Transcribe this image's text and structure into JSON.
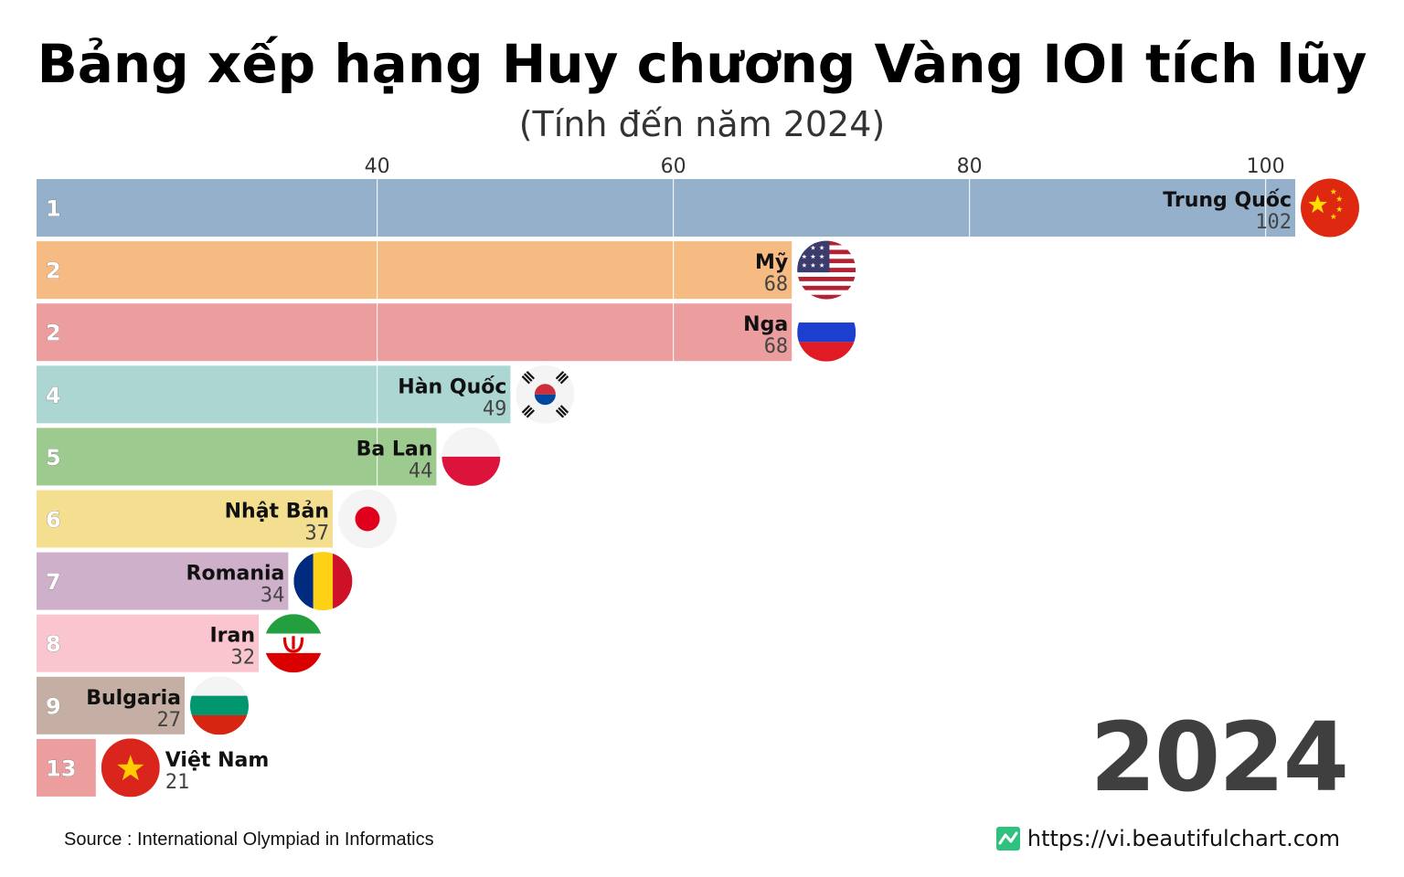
{
  "header": {
    "title": "Bảng xếp hạng Huy chương Vàng IOI tích lũy",
    "subtitle": "(Tính đến năm 2024)"
  },
  "chart_data": {
    "type": "bar",
    "orientation": "horizontal",
    "title": "Bảng xếp hạng Huy chương Vàng IOI tích lũy",
    "subtitle": "(Tính đến năm 2024)",
    "x_ticks": [
      40,
      60,
      80,
      100
    ],
    "grid": true,
    "bars": [
      {
        "rank": "1",
        "name": "Trung Quốc",
        "value": 102,
        "color": "#95b0cb",
        "flag": "china-flag-icon"
      },
      {
        "rank": "2",
        "name": "Mỹ",
        "value": 68,
        "color": "#f5bb82",
        "flag": "usa-flag-icon"
      },
      {
        "rank": "2",
        "name": "Nga",
        "value": 68,
        "color": "#ec9d9e",
        "flag": "russia-flag-icon"
      },
      {
        "rank": "4",
        "name": "Hàn Quốc",
        "value": 49,
        "color": "#acd6d1",
        "flag": "south-korea-flag-icon"
      },
      {
        "rank": "5",
        "name": "Ba Lan",
        "value": 44,
        "color": "#9dca8e",
        "flag": "poland-flag-icon"
      },
      {
        "rank": "6",
        "name": "Nhật Bản",
        "value": 37,
        "color": "#f4df91",
        "flag": "japan-flag-icon"
      },
      {
        "rank": "7",
        "name": "Romania",
        "value": 34,
        "color": "#ceb0cb",
        "flag": "romania-flag-icon"
      },
      {
        "rank": "8",
        "name": "Iran",
        "value": 32,
        "color": "#fac5ce",
        "flag": "iran-flag-icon"
      },
      {
        "rank": "9",
        "name": "Bulgaria",
        "value": 27,
        "color": "#c5aea3",
        "flag": "bulgaria-flag-icon"
      },
      {
        "rank": "13",
        "name": "Việt Nam",
        "value": 21,
        "color": "#ec9d9e",
        "flag": "vietnam-flag-icon"
      }
    ]
  },
  "year": "2024",
  "footer": {
    "source": "Source : International Olympiad in Informatics",
    "website": "https://vi.beautifulchart.com",
    "logo_icon": "chart-logo-icon"
  }
}
